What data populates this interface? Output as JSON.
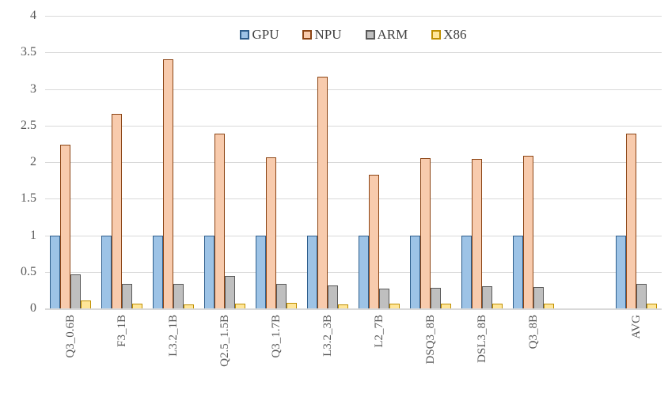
{
  "chart_data": {
    "type": "bar",
    "title": "",
    "xlabel": "",
    "ylabel": "",
    "categories": [
      "Q3_0.6B",
      "F3_1B",
      "L3.2_1B",
      "Q2.5_1.5B",
      "Q3_1.7B",
      "L3.2_3B",
      "L2_7B",
      "DSQ3_8B",
      "DSL3_8B",
      "Q3_8B",
      "AVG"
    ],
    "series": [
      {
        "name": "GPU",
        "fill": "#9DC3E6",
        "stroke": "#2E5E8C",
        "values": [
          1.0,
          1.0,
          1.0,
          1.0,
          1.0,
          1.0,
          1.0,
          1.0,
          1.0,
          1.0,
          1.0
        ]
      },
      {
        "name": "NPU",
        "fill": "#F8CBAD",
        "stroke": "#8C4515",
        "values": [
          2.24,
          2.66,
          3.41,
          2.39,
          2.07,
          3.17,
          1.83,
          2.05,
          2.04,
          2.09,
          2.39
        ]
      },
      {
        "name": "ARM",
        "fill": "#BFBFBF",
        "stroke": "#595959",
        "values": [
          0.46,
          0.34,
          0.34,
          0.44,
          0.34,
          0.31,
          0.27,
          0.28,
          0.3,
          0.29,
          0.33
        ]
      },
      {
        "name": "X86",
        "fill": "#FFE699",
        "stroke": "#BF8F00",
        "values": [
          0.11,
          0.07,
          0.05,
          0.07,
          0.08,
          0.05,
          0.06,
          0.06,
          0.06,
          0.06,
          0.07
        ]
      }
    ],
    "ylim": [
      0,
      4
    ],
    "yticks": [
      0,
      0.5,
      1,
      1.5,
      2,
      2.5,
      3,
      3.5,
      4
    ],
    "ytick_labels": [
      "0",
      "0.5",
      "1",
      "1.5",
      "2",
      "2.5",
      "3",
      "3.5",
      "4"
    ],
    "grid": true,
    "legend_position": "top-center",
    "empty_slot_before_last_category": true,
    "colors": {
      "gridline": "#D9D9D9",
      "axis_line": "#D9D9D9",
      "tick_text": "#595959",
      "legend_text": "#404040",
      "background": "#FFFFFF"
    }
  }
}
